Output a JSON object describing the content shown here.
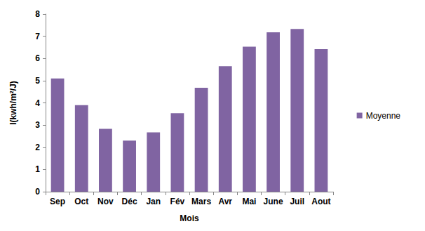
{
  "chart_data": {
    "type": "bar",
    "x_label": "Mois",
    "y_label": "I(kwh/m²/J)",
    "categories": [
      "Sep",
      "Oct",
      "Nov",
      "Déc",
      "Jan",
      "Fév",
      "Mars",
      "Avr",
      "Mai",
      "June",
      "Juil",
      "Aout"
    ],
    "series": [
      {
        "name": "Moyenne",
        "color": "#8064a2",
        "values": [
          5.1,
          3.9,
          2.83,
          2.3,
          2.67,
          3.53,
          4.68,
          5.65,
          6.53,
          7.18,
          7.33,
          6.42
        ]
      }
    ],
    "ylim": [
      0,
      8
    ],
    "yticks": [
      0,
      1,
      2,
      3,
      4,
      5,
      6,
      7,
      8
    ],
    "grid": false,
    "legend": "right"
  }
}
